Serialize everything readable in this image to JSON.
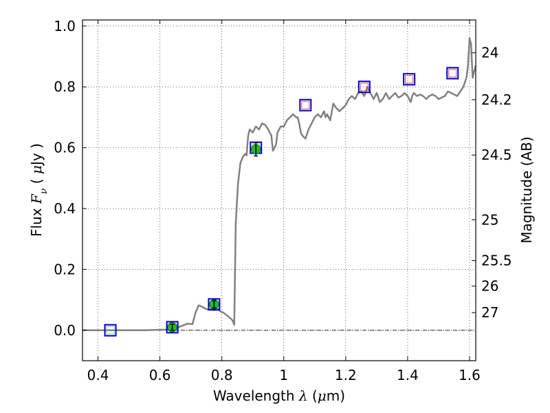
{
  "chart_data": {
    "type": "line",
    "xlabel": "Wavelength λ (μm)",
    "xlabel_parts": {
      "pre": "Wavelength  ",
      "sym": "λ",
      "open": " (",
      "mu": "μ",
      "post": "m)"
    },
    "ylabel": "Flux F_ν ( μJy )",
    "ylabel_parts": {
      "pre": "Flux  ",
      "sym": "F",
      "sub": "ν",
      "open": "  ( ",
      "mu": "μ",
      "post": "Jy )"
    },
    "y2label": "Magnitude (AB)",
    "xlim": [
      0.35,
      1.62
    ],
    "ylim": [
      -0.1,
      1.02
    ],
    "grid": true,
    "x_ticks": [
      {
        "value": 0.4,
        "label": "0.4"
      },
      {
        "value": 0.6,
        "label": "0.6"
      },
      {
        "value": 0.8,
        "label": "0.8"
      },
      {
        "value": 1.0,
        "label": "1"
      },
      {
        "value": 1.2,
        "label": "1.2"
      },
      {
        "value": 1.4,
        "label": "1.4"
      },
      {
        "value": 1.6,
        "label": "1.6"
      }
    ],
    "y_ticks": [
      {
        "value": 0.0,
        "label": "0.0"
      },
      {
        "value": 0.2,
        "label": "0.2"
      },
      {
        "value": 0.4,
        "label": "0.4"
      },
      {
        "value": 0.6,
        "label": "0.6"
      },
      {
        "value": 0.8,
        "label": "0.8"
      },
      {
        "value": 1.0,
        "label": "1.0"
      }
    ],
    "y2_ticks": [
      {
        "flux": 0.912,
        "label": "24"
      },
      {
        "flux": 0.758,
        "label": "24.2"
      },
      {
        "flux": 0.576,
        "label": "24.5"
      },
      {
        "flux": 0.363,
        "label": "25"
      },
      {
        "flux": 0.229,
        "label": "25.5"
      },
      {
        "flux": 0.145,
        "label": "26"
      },
      {
        "flux": 0.058,
        "label": "27"
      }
    ],
    "zero_line": 0.0,
    "series": [
      {
        "kind": "model-spectrum",
        "color": "#808080",
        "points": [
          [
            0.35,
            0.0
          ],
          [
            0.45,
            0.0
          ],
          [
            0.55,
            0.0
          ],
          [
            0.62,
            0.002
          ],
          [
            0.66,
            0.01
          ],
          [
            0.69,
            0.022
          ],
          [
            0.705,
            0.02
          ],
          [
            0.715,
            0.058
          ],
          [
            0.725,
            0.082
          ],
          [
            0.735,
            0.078
          ],
          [
            0.745,
            0.072
          ],
          [
            0.755,
            0.068
          ],
          [
            0.765,
            0.07
          ],
          [
            0.775,
            0.066
          ],
          [
            0.785,
            0.074
          ],
          [
            0.795,
            0.062
          ],
          [
            0.805,
            0.058
          ],
          [
            0.815,
            0.05
          ],
          [
            0.825,
            0.042
          ],
          [
            0.835,
            0.032
          ],
          [
            0.84,
            0.018
          ],
          [
            0.845,
            0.35
          ],
          [
            0.852,
            0.48
          ],
          [
            0.86,
            0.55
          ],
          [
            0.868,
            0.57
          ],
          [
            0.875,
            0.58
          ],
          [
            0.88,
            0.575
          ],
          [
            0.885,
            0.64
          ],
          [
            0.89,
            0.66
          ],
          [
            0.9,
            0.65
          ],
          [
            0.91,
            0.67
          ],
          [
            0.92,
            0.66
          ],
          [
            0.93,
            0.68
          ],
          [
            0.94,
            0.675
          ],
          [
            0.95,
            0.66
          ],
          [
            0.96,
            0.64
          ],
          [
            0.965,
            0.59
          ],
          [
            0.97,
            0.6
          ],
          [
            0.975,
            0.61
          ],
          [
            0.98,
            0.65
          ],
          [
            0.99,
            0.67
          ],
          [
            1.0,
            0.67
          ],
          [
            1.01,
            0.69
          ],
          [
            1.02,
            0.7
          ],
          [
            1.03,
            0.71
          ],
          [
            1.04,
            0.7
          ],
          [
            1.045,
            0.7
          ],
          [
            1.05,
            0.68
          ],
          [
            1.055,
            0.65
          ],
          [
            1.06,
            0.64
          ],
          [
            1.07,
            0.63
          ],
          [
            1.08,
            0.66
          ],
          [
            1.09,
            0.68
          ],
          [
            1.1,
            0.7
          ],
          [
            1.11,
            0.71
          ],
          [
            1.12,
            0.7
          ],
          [
            1.13,
            0.72
          ],
          [
            1.135,
            0.7
          ],
          [
            1.14,
            0.71
          ],
          [
            1.15,
            0.69
          ],
          [
            1.16,
            0.745
          ],
          [
            1.17,
            0.73
          ],
          [
            1.18,
            0.72
          ],
          [
            1.19,
            0.73
          ],
          [
            1.2,
            0.74
          ],
          [
            1.21,
            0.76
          ],
          [
            1.22,
            0.77
          ],
          [
            1.23,
            0.76
          ],
          [
            1.24,
            0.78
          ],
          [
            1.25,
            0.785
          ],
          [
            1.26,
            0.77
          ],
          [
            1.27,
            0.8
          ],
          [
            1.28,
            0.78
          ],
          [
            1.29,
            0.76
          ],
          [
            1.3,
            0.78
          ],
          [
            1.31,
            0.75
          ],
          [
            1.32,
            0.76
          ],
          [
            1.33,
            0.78
          ],
          [
            1.34,
            0.76
          ],
          [
            1.35,
            0.77
          ],
          [
            1.36,
            0.78
          ],
          [
            1.37,
            0.765
          ],
          [
            1.38,
            0.77
          ],
          [
            1.39,
            0.78
          ],
          [
            1.4,
            0.77
          ],
          [
            1.41,
            0.75
          ],
          [
            1.415,
            0.77
          ],
          [
            1.42,
            0.78
          ],
          [
            1.43,
            0.77
          ],
          [
            1.44,
            0.775
          ],
          [
            1.45,
            0.77
          ],
          [
            1.46,
            0.76
          ],
          [
            1.47,
            0.77
          ],
          [
            1.48,
            0.775
          ],
          [
            1.49,
            0.77
          ],
          [
            1.5,
            0.76
          ],
          [
            1.51,
            0.765
          ],
          [
            1.52,
            0.77
          ],
          [
            1.53,
            0.785
          ],
          [
            1.54,
            0.78
          ],
          [
            1.55,
            0.775
          ],
          [
            1.56,
            0.77
          ],
          [
            1.57,
            0.785
          ],
          [
            1.58,
            0.8
          ],
          [
            1.59,
            0.83
          ],
          [
            1.595,
            0.87
          ],
          [
            1.6,
            0.96
          ],
          [
            1.605,
            0.94
          ],
          [
            1.61,
            0.83
          ],
          [
            1.615,
            0.85
          ],
          [
            1.62,
            0.87
          ]
        ]
      },
      {
        "kind": "model-photometry",
        "marker": "square",
        "edge_color": "#0000cc",
        "points": [
          {
            "x": 0.44,
            "y": 0.0,
            "inner": "#7dcf7d"
          },
          {
            "x": 0.64,
            "y": 0.01,
            "inner": "#7dcf7d"
          },
          {
            "x": 0.775,
            "y": 0.085,
            "inner": "#7dcf7d"
          },
          {
            "x": 0.91,
            "y": 0.6,
            "inner": "#7dcf7d"
          },
          {
            "x": 1.07,
            "y": 0.74,
            "inner": "#e05050"
          },
          {
            "x": 1.26,
            "y": 0.8,
            "inner": "#e05050"
          },
          {
            "x": 1.405,
            "y": 0.825,
            "inner": "#e05050"
          },
          {
            "x": 1.545,
            "y": 0.845,
            "inner": "#e05050"
          }
        ]
      },
      {
        "kind": "observed",
        "marker": "circle",
        "color": "#22bb22",
        "points": [
          {
            "x": 0.64,
            "y": 0.01,
            "err": 0.01
          },
          {
            "x": 0.775,
            "y": 0.085,
            "err": 0.012
          },
          {
            "x": 0.91,
            "y": 0.595,
            "err": 0.022
          }
        ]
      }
    ]
  }
}
